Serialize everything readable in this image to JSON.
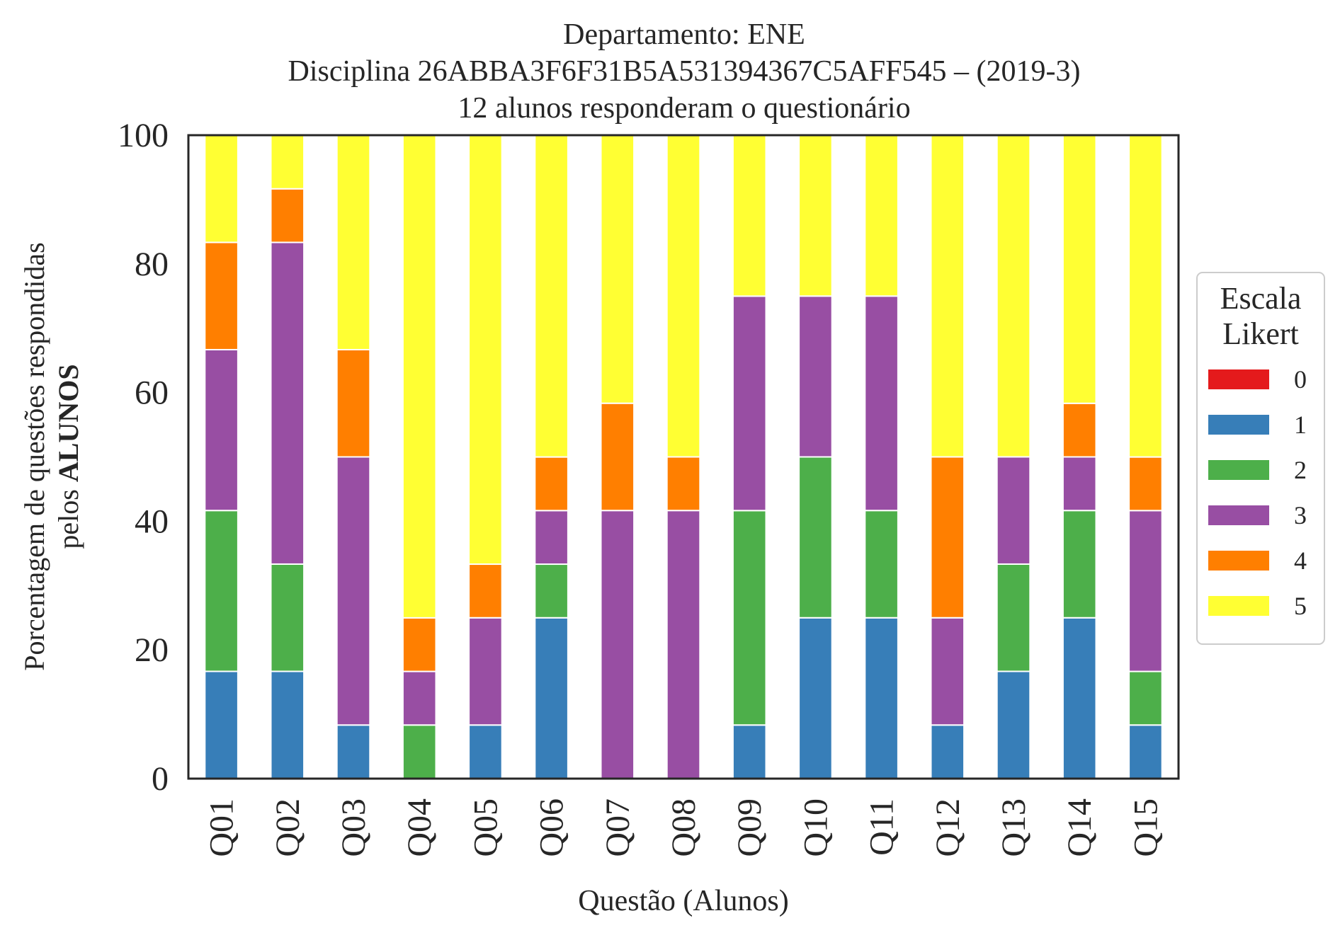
{
  "chart_data": {
    "type": "bar",
    "stacked": true,
    "title_lines": [
      "Departamento: ENE",
      "Disciplina 26ABBA3F6F31B5A531394367C5AFF545 – (2019-3)",
      "12 alunos responderam o questionário"
    ],
    "xlabel": "Questão (Alunos)",
    "ylabel_line1": "Porcentagem de questões respondidas",
    "ylabel_line2_prefix": "pelos ",
    "ylabel_line2_bold": "ALUNOS",
    "ylim": [
      0,
      100
    ],
    "yticks": [
      "0",
      "20",
      "40",
      "60",
      "80",
      "100"
    ],
    "grid": false,
    "legend_position": "right",
    "legend_title_lines": [
      "Escala",
      "Likert"
    ],
    "categories": [
      "Q01",
      "Q02",
      "Q03",
      "Q04",
      "Q05",
      "Q06",
      "Q07",
      "Q08",
      "Q09",
      "Q10",
      "Q11",
      "Q12",
      "Q13",
      "Q14",
      "Q15"
    ],
    "series": [
      {
        "name": "0",
        "color": "#e41a1c",
        "values": [
          0,
          0,
          0,
          0,
          0,
          0,
          0,
          0,
          0,
          0,
          0,
          0,
          0,
          0,
          0
        ]
      },
      {
        "name": "1",
        "color": "#377eb8",
        "values": [
          16.67,
          16.67,
          8.33,
          0,
          8.33,
          25,
          0,
          0,
          8.33,
          25,
          25,
          8.33,
          16.67,
          25,
          8.33
        ]
      },
      {
        "name": "2",
        "color": "#4daf4a",
        "values": [
          25,
          16.67,
          0,
          8.33,
          0,
          8.33,
          0,
          0,
          33.33,
          25,
          16.67,
          0,
          16.67,
          16.67,
          8.33
        ]
      },
      {
        "name": "3",
        "color": "#984ea3",
        "values": [
          25,
          50,
          41.67,
          8.33,
          16.67,
          8.33,
          41.67,
          41.67,
          33.33,
          25,
          33.33,
          16.67,
          16.67,
          8.33,
          25
        ]
      },
      {
        "name": "4",
        "color": "#ff7f00",
        "values": [
          16.67,
          8.33,
          16.67,
          8.33,
          8.33,
          8.33,
          16.67,
          8.33,
          0,
          0,
          0,
          25,
          0,
          8.33,
          8.33
        ]
      },
      {
        "name": "5",
        "color": "#ffff33",
        "values": [
          16.67,
          8.33,
          33.33,
          75,
          66.67,
          50,
          41.67,
          50,
          25,
          25,
          25,
          50,
          50,
          41.67,
          50
        ]
      }
    ]
  }
}
